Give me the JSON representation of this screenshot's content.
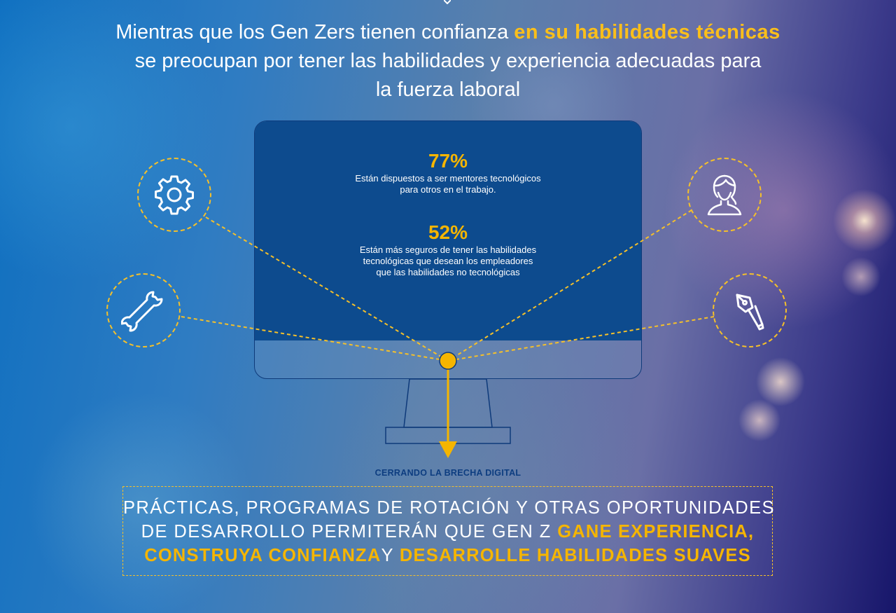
{
  "header": {
    "line1_start": "Mientras que los Gen Zers tienen confianza ",
    "line1_highlight": "en su habilidades técnicas",
    "line2": "se preocupan por tener las habilidades y experiencia adecuadas para",
    "line3": "la fuerza laboral"
  },
  "stats": [
    {
      "value": "77%",
      "line1": "Están dispuestos a ser mentores tecnológicos",
      "line2": "para otros en el trabajo."
    },
    {
      "value": "52%",
      "line1": "Están más seguros de tener las habilidades",
      "line2": "tecnológicas que desean los empleadores",
      "line3": "que las habilidades no tecnológicas"
    }
  ],
  "icons": {
    "left_top": "gear-icon",
    "left_bottom": "wrench-icon",
    "right_top": "person-icon",
    "right_bottom": "pen-nib-icon"
  },
  "caption": "CERRANDO LA BRECHA DIGITAL",
  "banner": {
    "line1": "PRÁCTICAS, PROGRAMAS DE ROTACIÓN Y OTRAS OPORTUNIDADES",
    "line2_start": "DE DESARROLLO PERMITERÁN QUE GEN Z ",
    "line2_highlight": "GANE EXPERIENCIA,",
    "line3_highlight1": "CONSTRUYA CONFIANZA",
    "line3_mid": "Y ",
    "line3_highlight2": "DESARROLLE HABILIDADES SUAVES"
  },
  "colors": {
    "accent_yellow": "#f5b500",
    "screen_blue": "#0d4b8e",
    "text_white": "#ffffff",
    "caption_navy": "#0d3d80"
  }
}
